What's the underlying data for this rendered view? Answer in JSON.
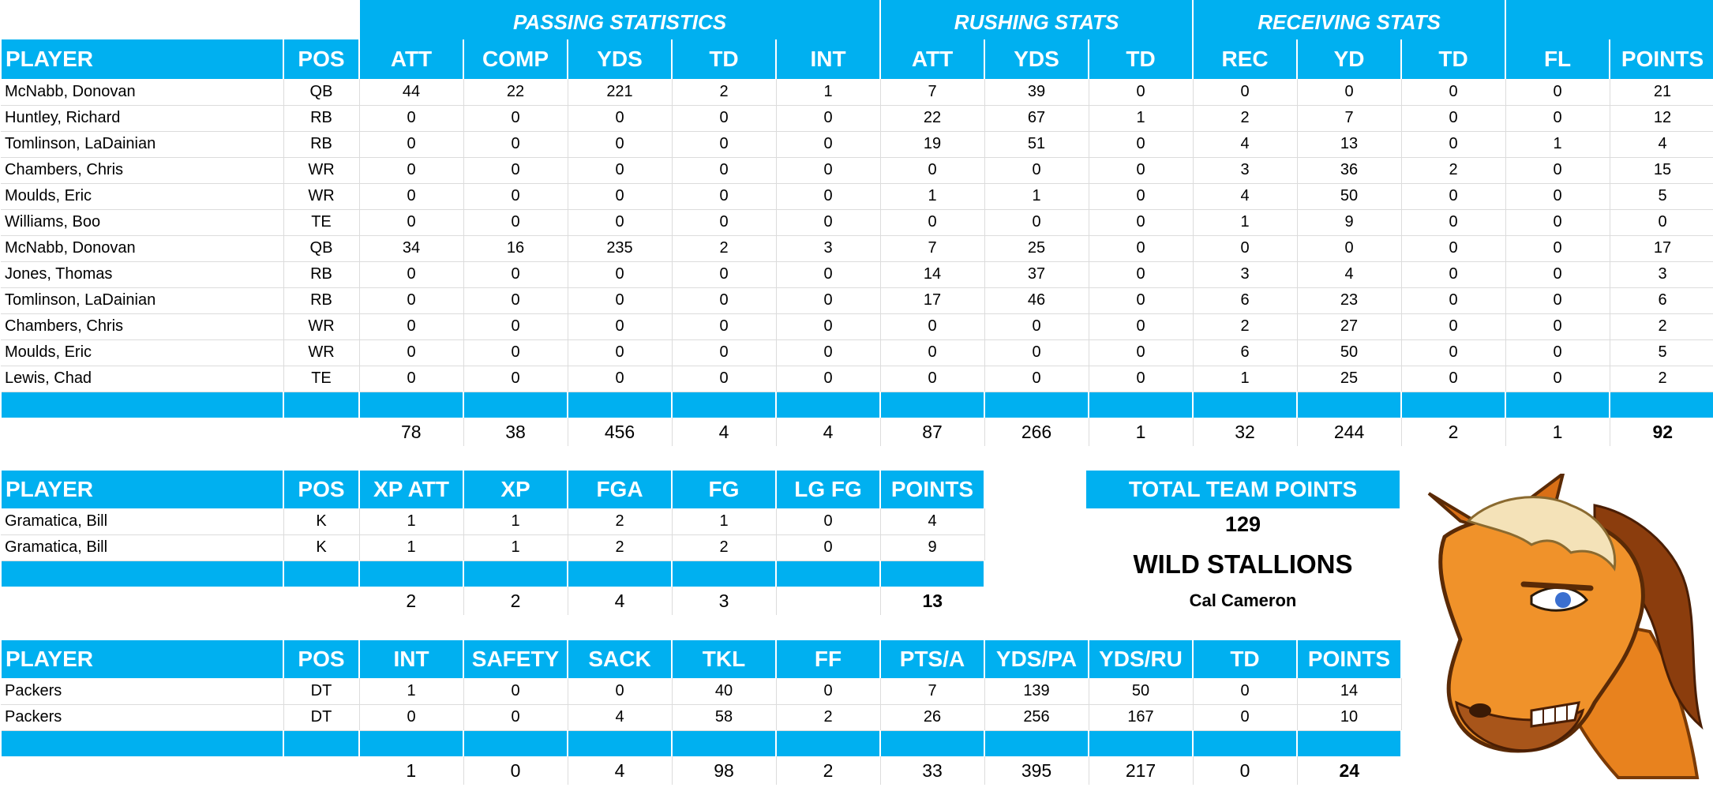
{
  "offense": {
    "group_headers": {
      "passing": "PASSING STATISTICS",
      "rushing": "RUSHING STATS",
      "receiving": "RECEIVING STATS"
    },
    "columns": [
      "PLAYER",
      "POS",
      "ATT",
      "COMP",
      "YDS",
      "TD",
      "INT",
      "ATT",
      "YDS",
      "TD",
      "REC",
      "YD",
      "TD",
      "FL",
      "POINTS"
    ],
    "rows": [
      [
        "McNabb, Donovan",
        "QB",
        "44",
        "22",
        "221",
        "2",
        "1",
        "7",
        "39",
        "0",
        "0",
        "0",
        "0",
        "0",
        "21"
      ],
      [
        "Huntley, Richard",
        "RB",
        "0",
        "0",
        "0",
        "0",
        "0",
        "22",
        "67",
        "1",
        "2",
        "7",
        "0",
        "0",
        "12"
      ],
      [
        "Tomlinson, LaDainian",
        "RB",
        "0",
        "0",
        "0",
        "0",
        "0",
        "19",
        "51",
        "0",
        "4",
        "13",
        "0",
        "1",
        "4"
      ],
      [
        "Chambers, Chris",
        "WR",
        "0",
        "0",
        "0",
        "0",
        "0",
        "0",
        "0",
        "0",
        "3",
        "36",
        "2",
        "0",
        "15"
      ],
      [
        "Moulds, Eric",
        "WR",
        "0",
        "0",
        "0",
        "0",
        "0",
        "1",
        "1",
        "0",
        "4",
        "50",
        "0",
        "0",
        "5"
      ],
      [
        "Williams, Boo",
        "TE",
        "0",
        "0",
        "0",
        "0",
        "0",
        "0",
        "0",
        "0",
        "1",
        "9",
        "0",
        "0",
        "0"
      ],
      [
        "McNabb, Donovan",
        "QB",
        "34",
        "16",
        "235",
        "2",
        "3",
        "7",
        "25",
        "0",
        "0",
        "0",
        "0",
        "0",
        "17"
      ],
      [
        "Jones, Thomas",
        "RB",
        "0",
        "0",
        "0",
        "0",
        "0",
        "14",
        "37",
        "0",
        "3",
        "4",
        "0",
        "0",
        "3"
      ],
      [
        "Tomlinson, LaDainian",
        "RB",
        "0",
        "0",
        "0",
        "0",
        "0",
        "17",
        "46",
        "0",
        "6",
        "23",
        "0",
        "0",
        "6"
      ],
      [
        "Chambers, Chris",
        "WR",
        "0",
        "0",
        "0",
        "0",
        "0",
        "0",
        "0",
        "0",
        "2",
        "27",
        "0",
        "0",
        "2"
      ],
      [
        "Moulds, Eric",
        "WR",
        "0",
        "0",
        "0",
        "0",
        "0",
        "0",
        "0",
        "0",
        "6",
        "50",
        "0",
        "0",
        "5"
      ],
      [
        "Lewis, Chad",
        "TE",
        "0",
        "0",
        "0",
        "0",
        "0",
        "0",
        "0",
        "0",
        "1",
        "25",
        "0",
        "0",
        "2"
      ]
    ],
    "totals": [
      "",
      "",
      "78",
      "38",
      "456",
      "4",
      "4",
      "87",
      "266",
      "1",
      "32",
      "244",
      "2",
      "1",
      "92"
    ]
  },
  "kicking": {
    "columns": [
      "PLAYER",
      "POS",
      "XP ATT",
      "XP",
      "FGA",
      "FG",
      "LG FG",
      "POINTS"
    ],
    "rows": [
      [
        "Gramatica, Bill",
        "K",
        "1",
        "1",
        "2",
        "1",
        "0",
        "4"
      ],
      [
        "Gramatica, Bill",
        "K",
        "1",
        "1",
        "2",
        "2",
        "0",
        "9"
      ]
    ],
    "totals": [
      "",
      "",
      "2",
      "2",
      "4",
      "3",
      "",
      "13"
    ]
  },
  "defense": {
    "columns": [
      "PLAYER",
      "POS",
      "INT",
      "SAFETY",
      "SACK",
      "TKL",
      "FF",
      "PTS/A",
      "YDS/PA",
      "YDS/RU",
      "TD",
      "POINTS"
    ],
    "rows": [
      [
        "Packers",
        "DT",
        "1",
        "0",
        "0",
        "40",
        "0",
        "7",
        "139",
        "50",
        "0",
        "14"
      ],
      [
        "Packers",
        "DT",
        "0",
        "0",
        "4",
        "58",
        "2",
        "26",
        "256",
        "167",
        "0",
        "10"
      ]
    ],
    "totals": [
      "",
      "",
      "1",
      "0",
      "4",
      "98",
      "2",
      "33",
      "395",
      "217",
      "0",
      "24"
    ]
  },
  "team": {
    "header": "TOTAL TEAM POINTS",
    "points": "129",
    "name": "WILD STALLIONS",
    "owner": "Cal Cameron"
  },
  "logo_icon": "stallion-mascot-icon",
  "colors": {
    "header_bg": "#00b0f0",
    "header_text": "#ffffff"
  }
}
